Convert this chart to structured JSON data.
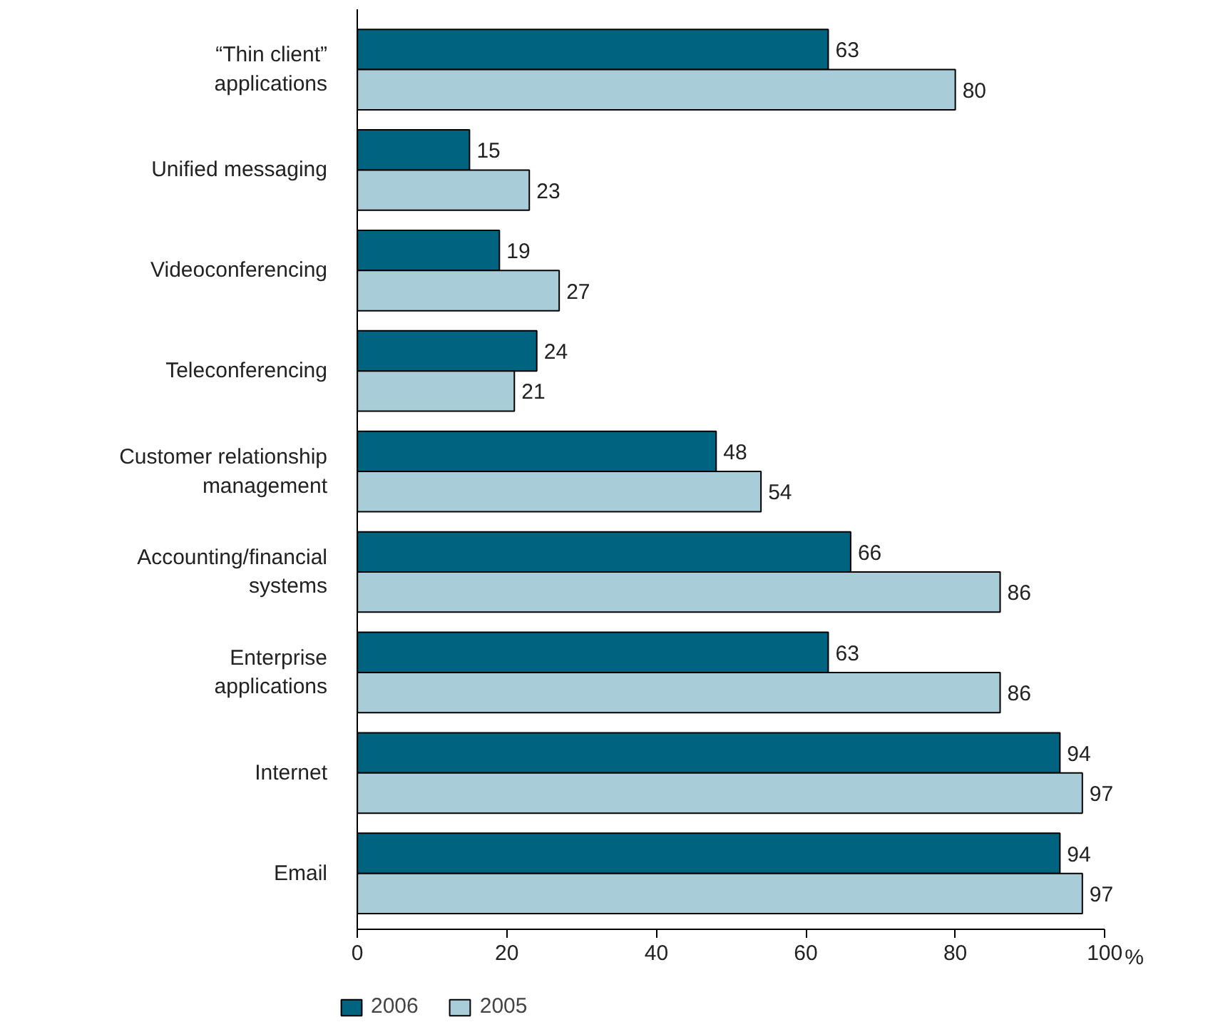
{
  "chart_data": {
    "type": "bar",
    "orientation": "horizontal",
    "xlabel": "%",
    "categories": [
      "“Thin client” applications",
      "Unified messaging",
      "Videoconferencing",
      "Teleconferencing",
      "Customer relationship management",
      "Accounting/financial systems",
      "Enterprise applications",
      "Internet",
      "Email"
    ],
    "series": [
      {
        "name": "2006",
        "color": "#00637f",
        "values": [
          63,
          15,
          19,
          24,
          48,
          66,
          63,
          94,
          94
        ]
      },
      {
        "name": "2005",
        "color": "#a9cdd8",
        "values": [
          80,
          23,
          27,
          21,
          54,
          86,
          86,
          97,
          97
        ]
      }
    ],
    "xlim": [
      0,
      100
    ],
    "xticks": [
      0,
      20,
      40,
      60,
      80,
      100
    ],
    "grid": false,
    "legend": "bottom left",
    "data_labels": true
  }
}
